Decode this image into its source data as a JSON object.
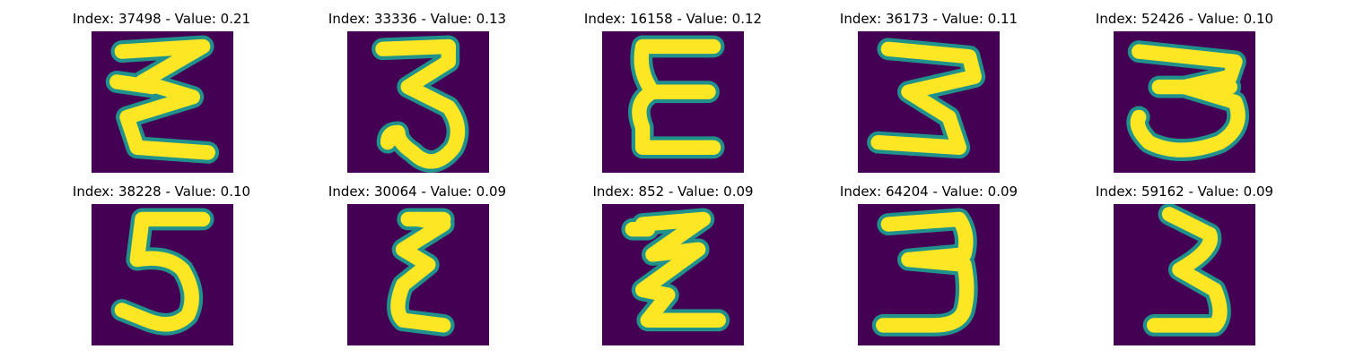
{
  "figure": {
    "background_color": "#440154",
    "stroke_color": "#fde725",
    "edge_color": "#21918c",
    "panels": [
      {
        "title": "Index: 37498 - Value: 0.21",
        "digit": "3"
      },
      {
        "title": "Index: 33336 - Value: 0.13",
        "digit": "3"
      },
      {
        "title": "Index: 16158 - Value: 0.12",
        "digit": "E"
      },
      {
        "title": "Index: 36173 - Value: 0.11",
        "digit": "3"
      },
      {
        "title": "Index: 52426 - Value: 0.10",
        "digit": "3"
      },
      {
        "title": "Index: 38228 - Value: 0.10",
        "digit": "5"
      },
      {
        "title": "Index: 30064 - Value: 0.09",
        "digit": "E"
      },
      {
        "title": "Index: 852 - Value: 0.09",
        "digit": "3"
      },
      {
        "title": "Index: 64204 - Value: 0.09",
        "digit": "3"
      },
      {
        "title": "Index: 59162 - Value: 0.09",
        "digit": "3"
      }
    ]
  }
}
